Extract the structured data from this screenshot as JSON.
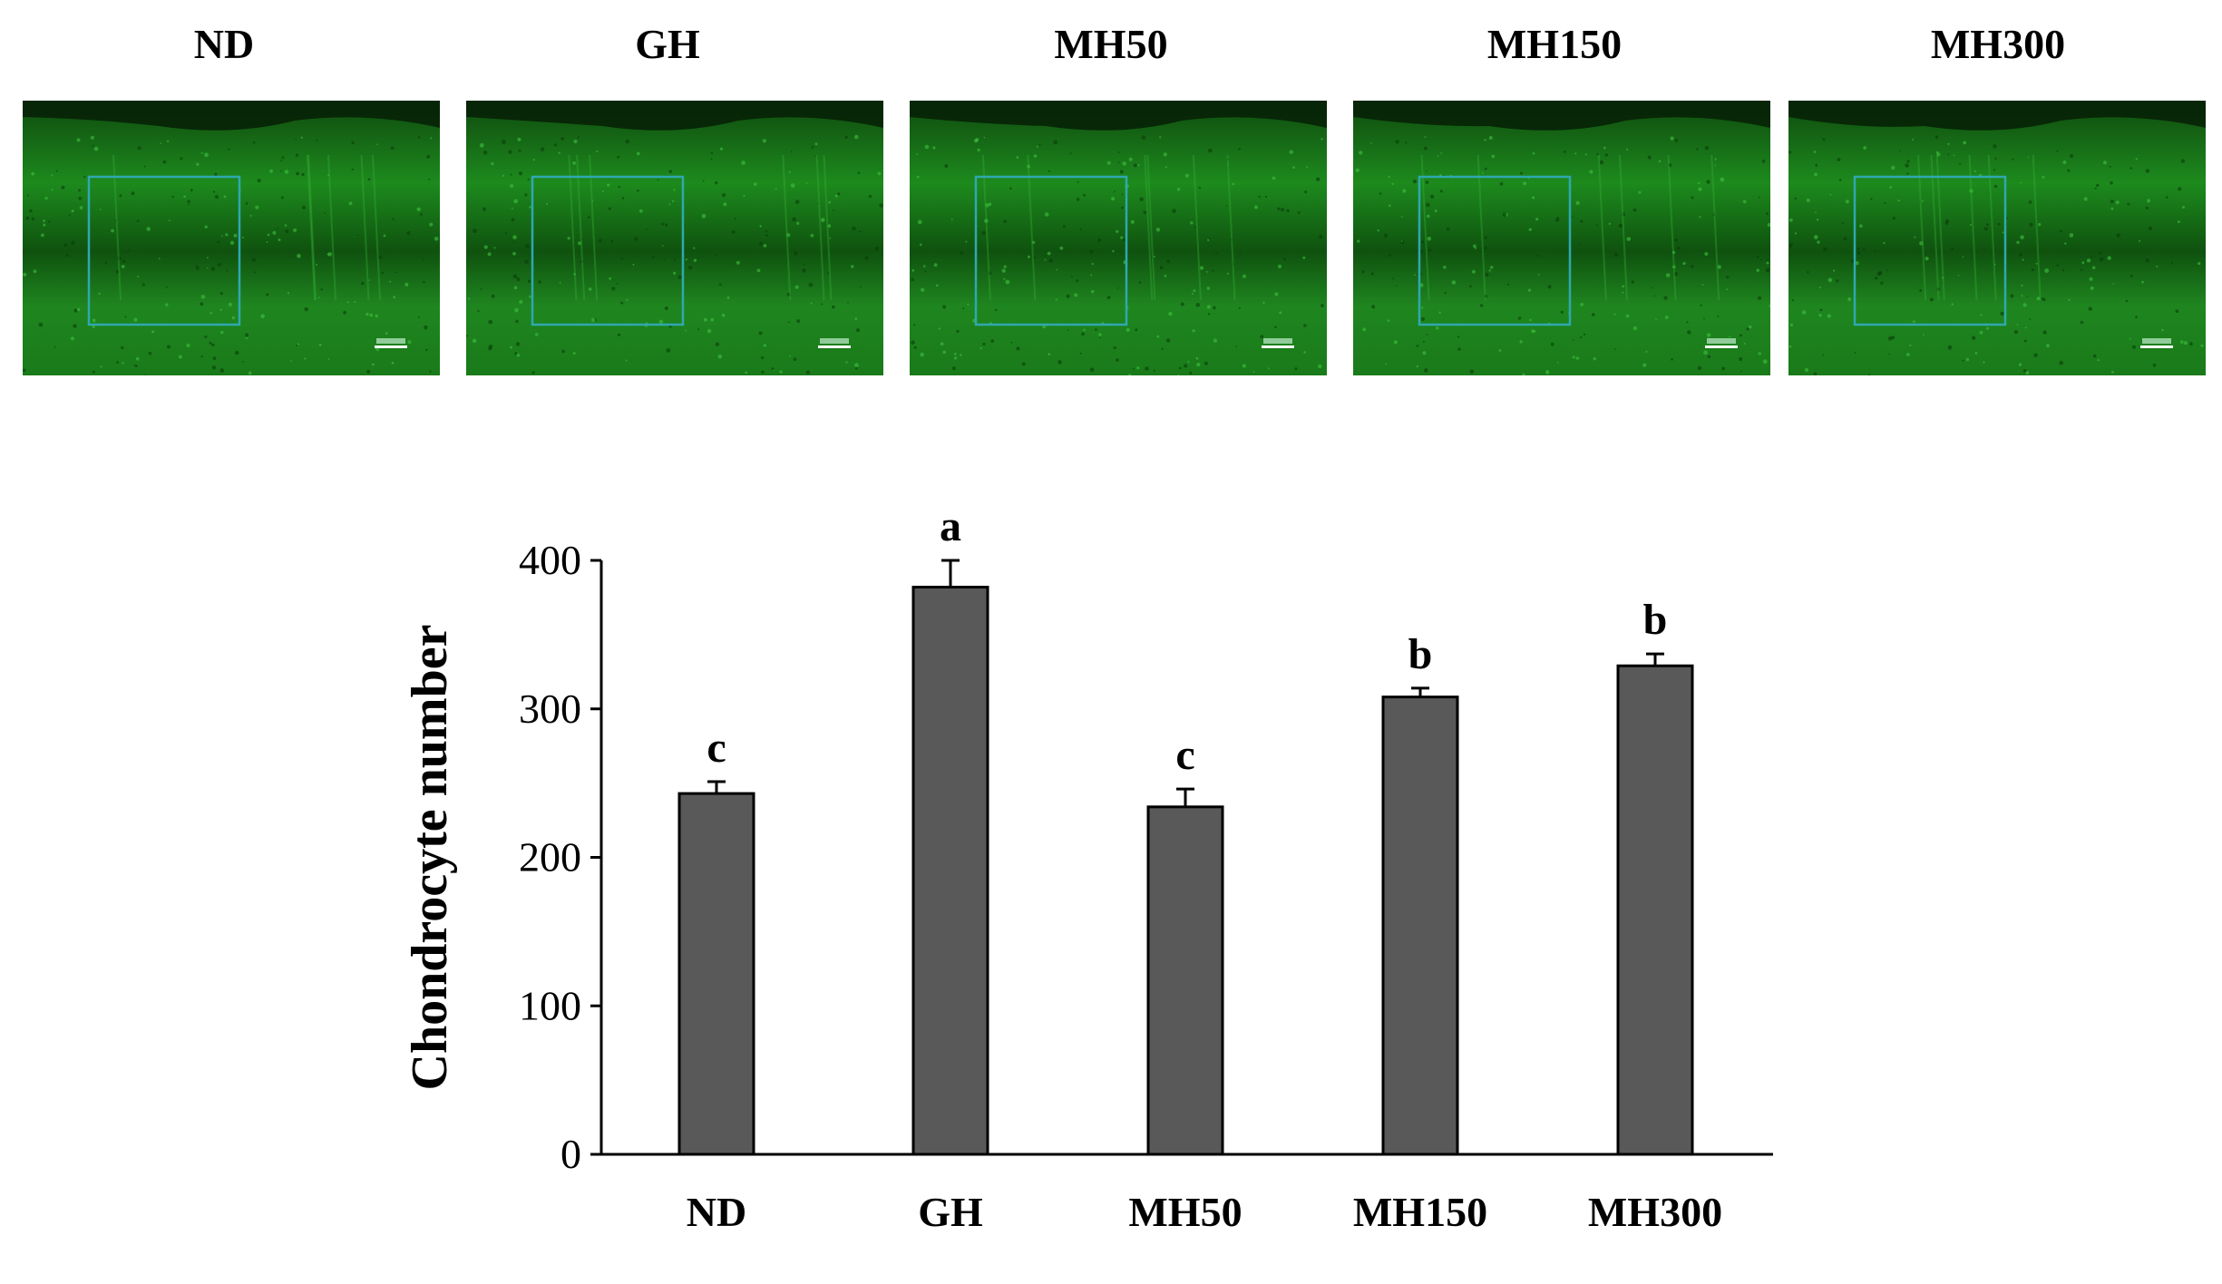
{
  "panels": [
    {
      "label": "ND"
    },
    {
      "label": "GH"
    },
    {
      "label": "MH50"
    },
    {
      "label": "MH150"
    },
    {
      "label": "MH300"
    }
  ],
  "colors": {
    "tissue_green": "#1a8a1a",
    "roi_box": "#2fa8b0",
    "bar_fill": "#595959",
    "axis": "#000000"
  },
  "chart_data": {
    "type": "bar",
    "categories": [
      "ND",
      "GH",
      "MH50",
      "MH150",
      "MH300"
    ],
    "values": [
      243,
      382,
      234,
      308,
      329
    ],
    "errors": [
      8,
      18,
      12,
      6,
      8
    ],
    "significance": [
      "c",
      "a",
      "c",
      "b",
      "b"
    ],
    "ylabel": "Chondrocyte number",
    "xlabel": "",
    "ylim": [
      0,
      400
    ],
    "yticks": [
      0,
      100,
      200,
      300,
      400
    ],
    "legend": "none",
    "grid": false
  }
}
